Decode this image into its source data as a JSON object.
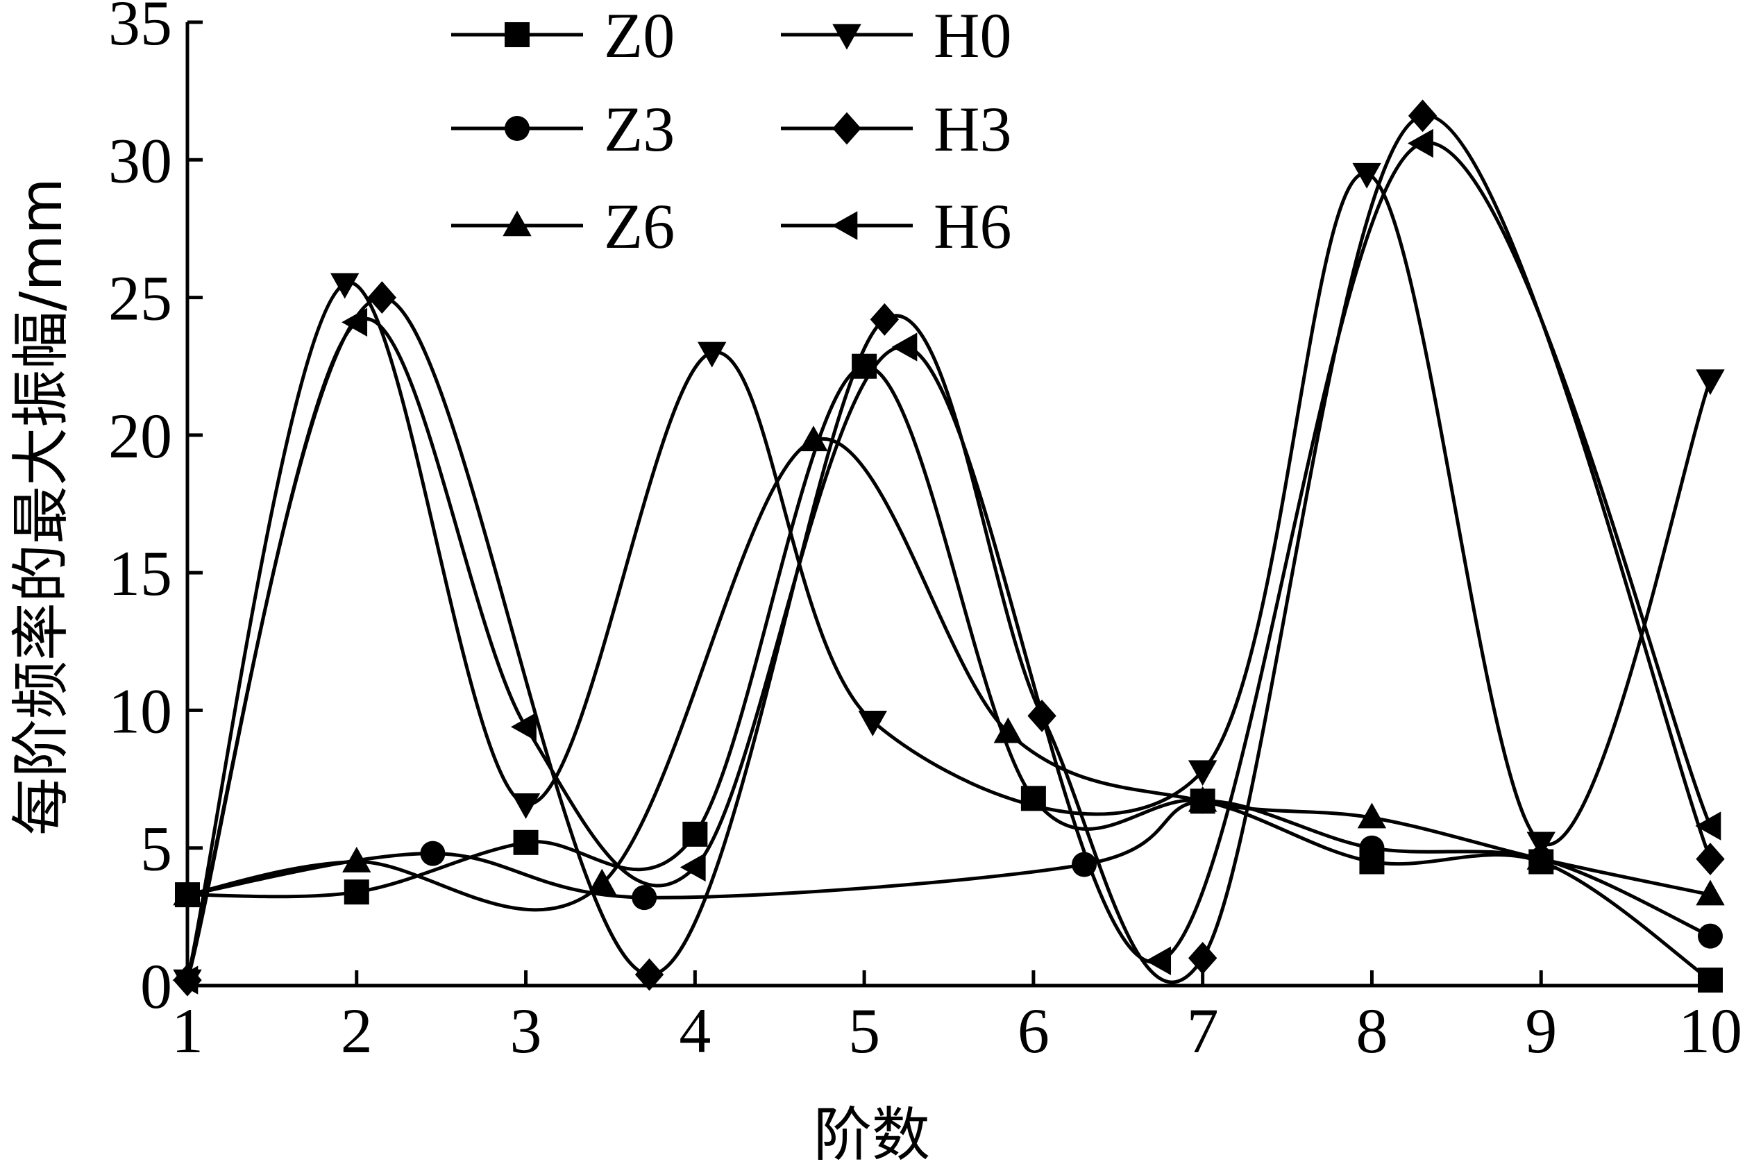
{
  "chart_data": {
    "type": "line",
    "title": "",
    "xlabel": "阶数",
    "ylabel": "每阶频率的最大振幅/mm",
    "xlim": [
      1,
      10
    ],
    "ylim": [
      0,
      35
    ],
    "xticks": [
      "1",
      "2",
      "3",
      "4",
      "5",
      "6",
      "7",
      "8",
      "9",
      "10"
    ],
    "yticks": [
      "0",
      "5",
      "10",
      "15",
      "20",
      "25",
      "30",
      "35"
    ],
    "grid": false,
    "legend_position": "top",
    "series": [
      {
        "name": "Z0",
        "marker": "square",
        "x": [
          1,
          2,
          3,
          4,
          5,
          6,
          7,
          8,
          9,
          10
        ],
        "y": [
          3.3,
          3.4,
          5.2,
          5.5,
          22.5,
          6.8,
          6.7,
          4.5,
          4.5,
          0.2
        ]
      },
      {
        "name": "Z3",
        "marker": "circle",
        "x": [
          1,
          2.45,
          3.7,
          6.3,
          7,
          8,
          9,
          10
        ],
        "y": [
          3.3,
          4.8,
          3.2,
          4.4,
          6.7,
          5.0,
          4.6,
          1.8
        ]
      },
      {
        "name": "Z6",
        "marker": "triangle-up",
        "x": [
          1,
          2,
          3.45,
          4.7,
          5.85,
          7,
          8,
          9,
          10
        ],
        "y": [
          3.3,
          4.5,
          3.7,
          19.8,
          9.2,
          6.7,
          6.1,
          4.6,
          3.3
        ]
      },
      {
        "name": "H0",
        "marker": "triangle-down",
        "x": [
          1,
          1.93,
          3,
          4.1,
          5.05,
          7,
          7.97,
          9,
          10
        ],
        "y": [
          0.2,
          25.5,
          6.6,
          23.0,
          9.6,
          7.8,
          29.5,
          5.2,
          22.0
        ]
      },
      {
        "name": "H3",
        "marker": "diamond",
        "x": [
          1,
          2.15,
          3.73,
          5.12,
          6.05,
          7,
          8.3,
          10
        ],
        "y": [
          0.2,
          25.0,
          0.4,
          24.2,
          9.8,
          1.0,
          31.6,
          4.6
        ]
      },
      {
        "name": "H6",
        "marker": "triangle-left",
        "x": [
          1,
          2,
          3,
          4,
          5.25,
          6.75,
          8.3,
          10
        ],
        "y": [
          0.2,
          24.1,
          9.4,
          4.3,
          23.2,
          0.9,
          30.6,
          5.8
        ]
      }
    ]
  }
}
